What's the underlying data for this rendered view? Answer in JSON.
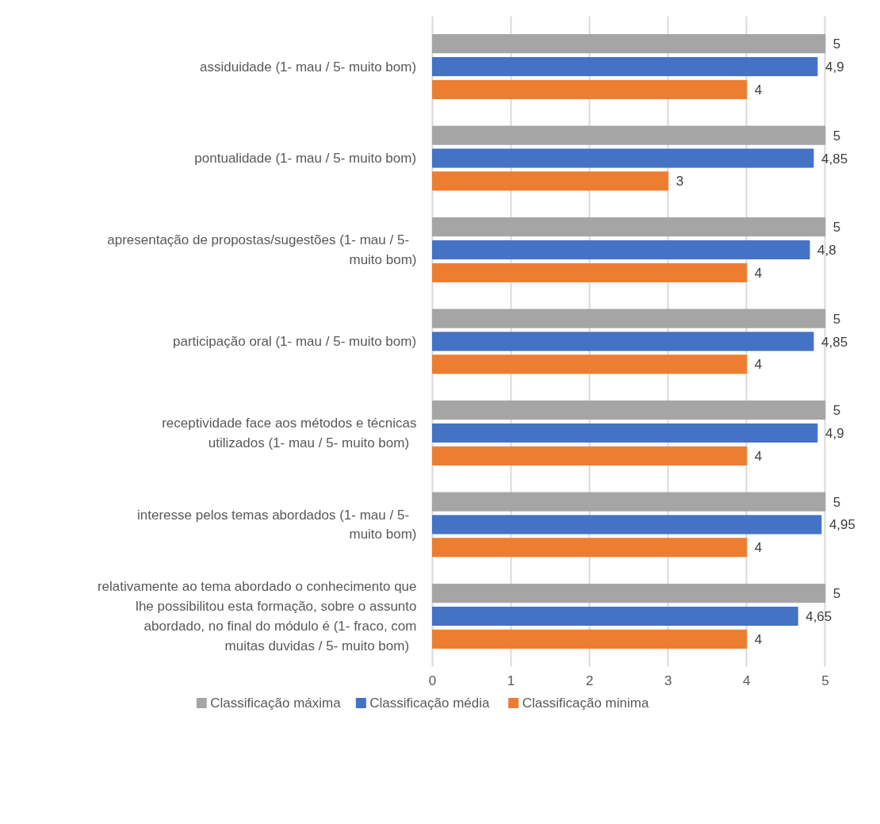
{
  "chart_data": {
    "type": "bar",
    "orientation": "horizontal",
    "categories": [
      "assiduidade (1- mau  /  5- muito bom)",
      "pontualidade (1- mau  /  5- muito bom)",
      "apresentação de propostas/sugestões (1- mau  /  5- muito bom)",
      "participação oral (1- mau  /  5- muito bom)",
      "receptividade face aos métodos e técnicas utilizados (1- mau  /  5- muito bom)",
      "interesse pelos temas abordados (1- mau  /  5- muito bom)",
      "relativamente ao tema abordado o conhecimento que lhe possibilitou esta formação, sobre o assunto abordado, no final do módulo é (1- fraco, com muitas duvidas  /  5- muito bom)"
    ],
    "series": [
      {
        "name": "Classificação máxima",
        "color": "#a5a5a5",
        "values": [
          5,
          5,
          5,
          5,
          5,
          5,
          5
        ],
        "value_labels": [
          "5",
          "5",
          "5",
          "5",
          "5",
          "5",
          "5"
        ]
      },
      {
        "name": "Classificação média",
        "color": "#4472c4",
        "values": [
          4.9,
          4.85,
          4.8,
          4.85,
          4.9,
          4.95,
          4.65
        ],
        "value_labels": [
          "4,9",
          "4,85",
          "4,8",
          "4,85",
          "4,9",
          "4,95",
          "4,65"
        ]
      },
      {
        "name": "Classificação minima",
        "color": "#ed7d31",
        "values": [
          4,
          3,
          4,
          4,
          4,
          4,
          4
        ],
        "value_labels": [
          "4",
          "3",
          "4",
          "4",
          "4",
          "4",
          "4"
        ]
      }
    ],
    "xlim": [
      0,
      5
    ],
    "xticks": [
      0,
      1,
      2,
      3,
      4,
      5
    ],
    "grid": "x",
    "legend": "bottom"
  }
}
